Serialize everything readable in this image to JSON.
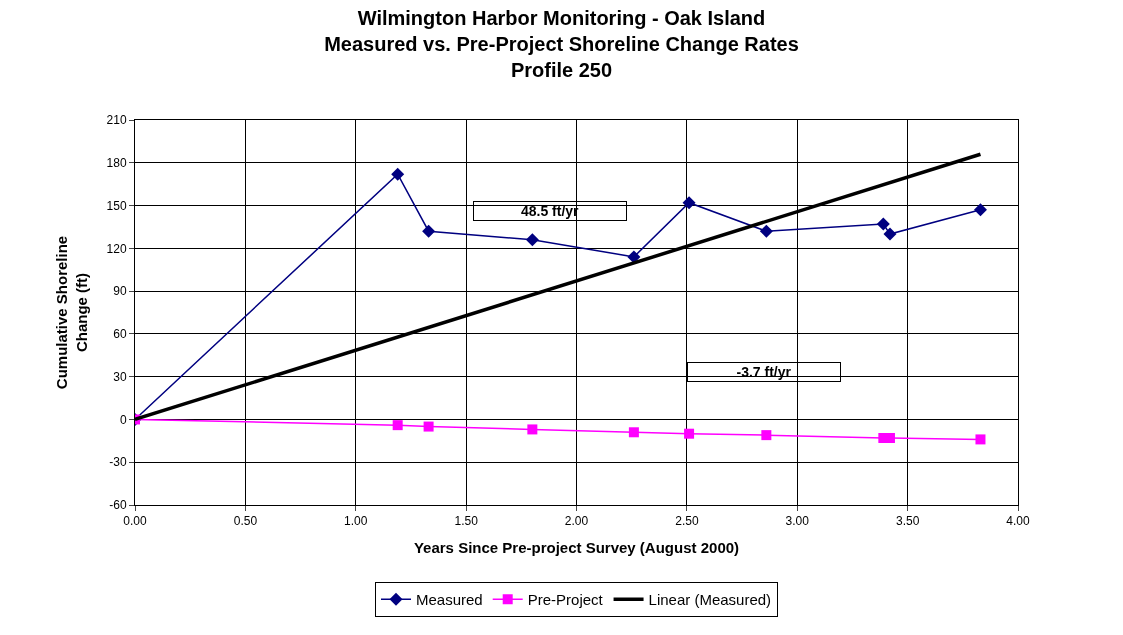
{
  "chart_data": {
    "type": "line",
    "title": "Wilmington Harbor Monitoring - Oak Island\nMeasured vs. Pre-Project Shoreline Change Rates\nProfile 250",
    "xlabel": "Years Since Pre-project Survey (August 2000)",
    "ylabel": "Cumulative Shoreline\nChange (ft)",
    "series": [
      {
        "name": "Measured",
        "color": "#000080",
        "marker": "diamond",
        "x": [
          0,
          1.19,
          1.33,
          1.8,
          2.26,
          2.51,
          2.86,
          3.39,
          3.42,
          3.83
        ],
        "values": [
          0,
          172,
          132,
          126,
          114,
          152,
          132,
          137,
          130,
          147
        ]
      },
      {
        "name": "Pre-Project",
        "color": "#ff00ff",
        "marker": "square",
        "x": [
          0,
          1.19,
          1.33,
          1.8,
          2.26,
          2.51,
          2.86,
          3.39,
          3.42,
          3.83
        ],
        "values": [
          0,
          -4,
          -5,
          -7,
          -9,
          -10,
          -11,
          -13,
          -13,
          -14
        ]
      },
      {
        "name": "Linear (Measured)",
        "color": "#000000",
        "marker": "none",
        "x": [
          0,
          3.83
        ],
        "values": [
          0,
          186
        ]
      }
    ],
    "annotations": [
      "48.5 ft/yr",
      "-3.7 ft/yr"
    ],
    "xlim": [
      0,
      4
    ],
    "xticks": [
      {
        "value": 0,
        "label": "0.00"
      },
      {
        "value": 0.5,
        "label": "0.50"
      },
      {
        "value": 1,
        "label": "1.00"
      },
      {
        "value": 1.5,
        "label": "1.50"
      },
      {
        "value": 2,
        "label": "2.00"
      },
      {
        "value": 2.5,
        "label": "2.50"
      },
      {
        "value": 3,
        "label": "3.00"
      },
      {
        "value": 3.5,
        "label": "3.50"
      },
      {
        "value": 4,
        "label": "4.00"
      }
    ],
    "ylim": [
      -60,
      210
    ],
    "yticks": [
      -60,
      -30,
      0,
      30,
      60,
      90,
      120,
      150,
      180,
      210
    ],
    "grid": true,
    "legend": "bottom"
  }
}
